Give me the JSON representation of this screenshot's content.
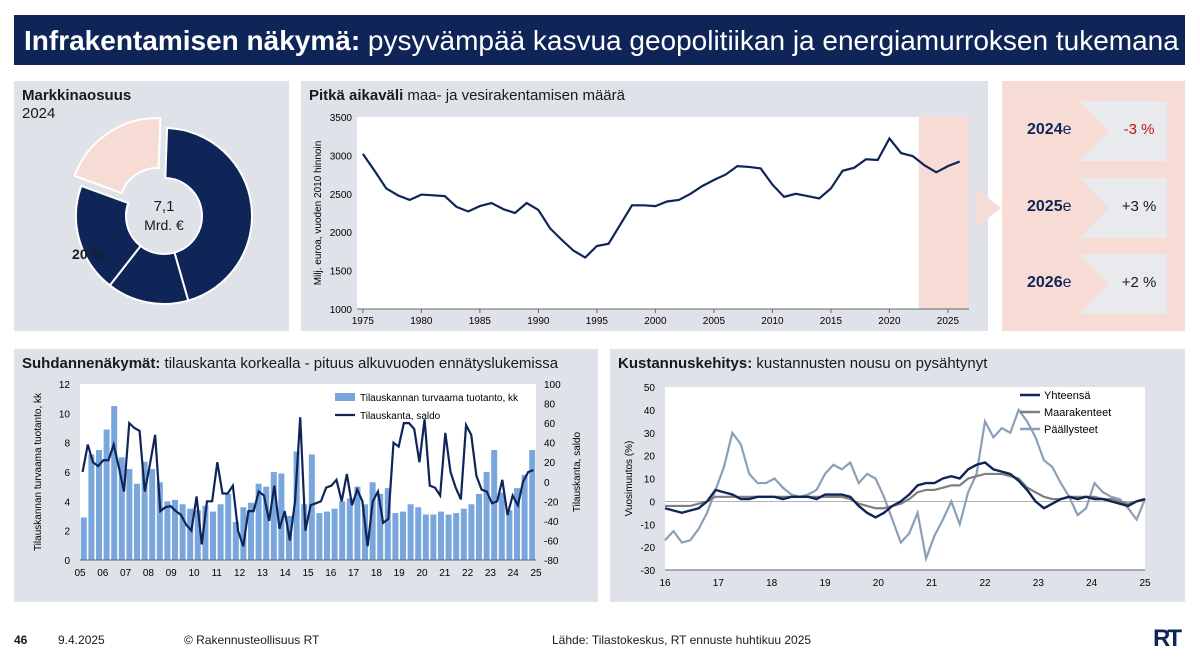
{
  "header": {
    "title_bold": "Infrakentamisen näkymä:",
    "title_rest": " pysyvämpää kasvua geopolitiikan ja energiamurroksen tukemana"
  },
  "market": {
    "title": "Markkinaosuus",
    "year": "2024",
    "center_value": "7,1",
    "center_unit": "Mrd. €",
    "share_label": "20 %"
  },
  "long_term": {
    "title_bold": "Pitkä aikaväli",
    "title_rest": " maa- ja vesirakentamisen määrä"
  },
  "forecast": [
    {
      "year": "2024",
      "suffix": "e",
      "value": "-3 %",
      "color": "#c0101a"
    },
    {
      "year": "2025",
      "suffix": "e",
      "value": "+3 %",
      "color": "#1a1a1a"
    },
    {
      "year": "2026",
      "suffix": "e",
      "value": "+2 %",
      "color": "#1a1a1a"
    }
  ],
  "cycle": {
    "title_bold": "Suhdannenäkymät:",
    "title_rest": " tilauskanta korkealla - pituus alkuvuoden ennätyslukemissa"
  },
  "cost": {
    "title_bold": "Kustannuskehitys:",
    "title_rest": " kustannusten nousu on pysähtynyt"
  },
  "footer": {
    "page": "46",
    "date": "9.4.2025",
    "copyright": "© Rakennusteollisuus RT",
    "source": "Lähde: Tilastokeskus, RT ennuste huhtikuu 2025",
    "logo": "RT"
  },
  "colors": {
    "navy": "#0f2558",
    "pink": "#f6dcd4",
    "bar": "#79a6dc",
    "gray": "#7f7f7f",
    "lightblue": "#8aa0b8",
    "panel": "#dfe2e8"
  },
  "chart_data": [
    {
      "type": "pie",
      "title": "Markkinaosuus",
      "subtitle": "2024",
      "values": [
        20,
        45,
        15,
        20
      ],
      "highlight_label": "20 %",
      "center_label": "7,1 Mrd. €"
    },
    {
      "type": "line",
      "title": "Pitkä aikaväli maa- ja vesirakentamisen määrä",
      "ylabel": "Milj. euroa, vuoden 2010 hinnoin",
      "ylim": [
        1000,
        3500
      ],
      "yticks": [
        1000,
        1500,
        2000,
        2500,
        3000,
        3500
      ],
      "xticks": [
        1975,
        1980,
        1985,
        1990,
        1995,
        2000,
        2005,
        2010,
        2015,
        2020,
        2025
      ],
      "forecast_from": 2023,
      "x": [
        1975,
        1976,
        1977,
        1978,
        1979,
        1980,
        1981,
        1982,
        1983,
        1984,
        1985,
        1986,
        1987,
        1988,
        1989,
        1990,
        1991,
        1992,
        1993,
        1994,
        1995,
        1996,
        1997,
        1998,
        1999,
        2000,
        2001,
        2002,
        2003,
        2004,
        2005,
        2006,
        2007,
        2008,
        2009,
        2010,
        2011,
        2012,
        2013,
        2014,
        2015,
        2016,
        2017,
        2018,
        2019,
        2020,
        2021,
        2022,
        2023,
        2024,
        2025,
        2026
      ],
      "y": [
        3020,
        2800,
        2570,
        2480,
        2420,
        2490,
        2480,
        2470,
        2330,
        2270,
        2340,
        2380,
        2300,
        2250,
        2380,
        2290,
        2050,
        1900,
        1760,
        1670,
        1820,
        1850,
        2100,
        2350,
        2350,
        2340,
        2400,
        2420,
        2500,
        2600,
        2680,
        2750,
        2860,
        2850,
        2830,
        2620,
        2460,
        2500,
        2470,
        2440,
        2570,
        2800,
        2840,
        2950,
        2940,
        3220,
        3030,
        2990,
        2870,
        2780,
        2860,
        2920
      ]
    },
    {
      "type": "bar",
      "title": "Suhdannenäkymät: tilauskanta korkealla - pituus alkuvuoden ennätyslukemissa",
      "ylabel": "Tilauskannan turvaama tuotanto, kk",
      "y2label": "Tilauskanta, saldo",
      "ylim": [
        0,
        12
      ],
      "y2lim": [
        -80,
        100
      ],
      "xticks": [
        "05",
        "06",
        "07",
        "08",
        "09",
        "10",
        "11",
        "12",
        "13",
        "14",
        "15",
        "16",
        "17",
        "18",
        "19",
        "20",
        "21",
        "22",
        "23",
        "24",
        "25"
      ],
      "series": [
        {
          "name": "Tilauskannan turvaama tuotanto, kk",
          "type": "bar",
          "values": [
            2.9,
            7.2,
            7.5,
            8.9,
            10.5,
            7.0,
            6.2,
            5.2,
            6.7,
            6.2,
            5.3,
            4.0,
            4.1,
            3.8,
            3.5,
            3.4,
            3.7,
            3.3,
            3.8,
            4.5,
            2.6,
            3.6,
            3.9,
            5.2,
            5.0,
            6.0,
            5.9,
            3.0,
            7.4,
            3.8,
            7.2,
            3.2,
            3.3,
            3.5,
            4.0,
            4.2,
            5.0,
            3.8,
            5.3,
            4.5,
            4.9,
            3.2,
            3.3,
            3.8,
            3.6,
            3.1,
            3.1,
            3.3,
            3.1,
            3.2,
            3.5,
            3.8,
            4.5,
            6.0,
            7.5,
            4.6,
            3.4,
            4.9,
            5.8,
            7.5
          ]
        },
        {
          "name": "Tilauskanta, saldo",
          "type": "line",
          "values": [
            10,
            38,
            20,
            16,
            22,
            22,
            38,
            15,
            -10,
            60,
            55,
            52,
            -10,
            18,
            48,
            -30,
            -26,
            -25,
            -30,
            -34,
            -44,
            -50,
            -15,
            -64,
            -20,
            -20,
            20,
            -12,
            -12,
            -4,
            -50,
            -66,
            -30,
            -30,
            -10,
            -14,
            -40,
            -4,
            -48,
            -30,
            -60,
            -20,
            66,
            -50,
            -24,
            -22,
            -20,
            -6,
            -4,
            2,
            -20,
            8,
            -24,
            -8,
            -20,
            -66,
            -20,
            -10,
            -42,
            -38,
            40,
            36,
            60,
            60,
            54,
            20,
            64,
            -4,
            -6,
            -14,
            50,
            10,
            -6,
            -18,
            58,
            48,
            6,
            -8,
            -10,
            -22,
            -20,
            2,
            -34,
            -14,
            -24,
            0,
            10,
            12
          ]
        }
      ]
    },
    {
      "type": "line",
      "title": "Kustannuskehitys: kustannusten nousu on pysähtynyt",
      "ylabel": "Vuosimuutos (%)",
      "ylim": [
        -30,
        50
      ],
      "yticks": [
        -30,
        -20,
        -10,
        0,
        10,
        20,
        30,
        40,
        50
      ],
      "xticks": [
        "16",
        "17",
        "18",
        "19",
        "20",
        "21",
        "22",
        "23",
        "24",
        "25"
      ],
      "series": [
        {
          "name": "Yhteensä",
          "values": [
            -3,
            -4,
            -5,
            -4,
            -3,
            0,
            5,
            4,
            3,
            1,
            1,
            2,
            2,
            2,
            1,
            2,
            2,
            2,
            1,
            3,
            3,
            3,
            2,
            -2,
            -5,
            -7,
            -5,
            -2,
            0,
            3,
            7,
            8,
            8,
            10,
            11,
            10,
            14,
            16,
            17,
            14,
            13,
            12,
            9,
            5,
            0,
            -3,
            -1,
            1,
            2,
            1,
            2,
            1,
            1,
            0,
            -1,
            -2,
            0,
            1
          ]
        },
        {
          "name": "Maarakenteet",
          "values": [
            -2,
            -2,
            -2,
            -2,
            -1,
            0,
            2,
            2,
            2,
            2,
            2,
            2,
            2,
            2,
            2,
            2,
            2,
            2,
            2,
            2,
            2,
            2,
            1,
            -1,
            -2,
            -3,
            -3,
            -2,
            -1,
            1,
            4,
            5,
            5,
            6,
            7,
            7,
            10,
            11,
            12,
            12,
            12,
            11,
            10,
            6,
            4,
            2,
            1,
            1,
            2,
            2,
            2,
            2,
            1,
            1,
            0,
            -1,
            0,
            1
          ]
        },
        {
          "name": "Päällysteet",
          "values": [
            -17,
            -13,
            -18,
            -17,
            -12,
            -5,
            5,
            15,
            30,
            25,
            12,
            8,
            8,
            10,
            6,
            3,
            2,
            3,
            5,
            12,
            16,
            14,
            17,
            8,
            12,
            10,
            2,
            -8,
            -18,
            -14,
            -5,
            -25,
            -15,
            -8,
            0,
            -10,
            4,
            12,
            35,
            28,
            32,
            30,
            40,
            35,
            28,
            18,
            15,
            8,
            2,
            -6,
            -3,
            8,
            4,
            2,
            1,
            -3,
            -8,
            1
          ]
        }
      ]
    }
  ]
}
